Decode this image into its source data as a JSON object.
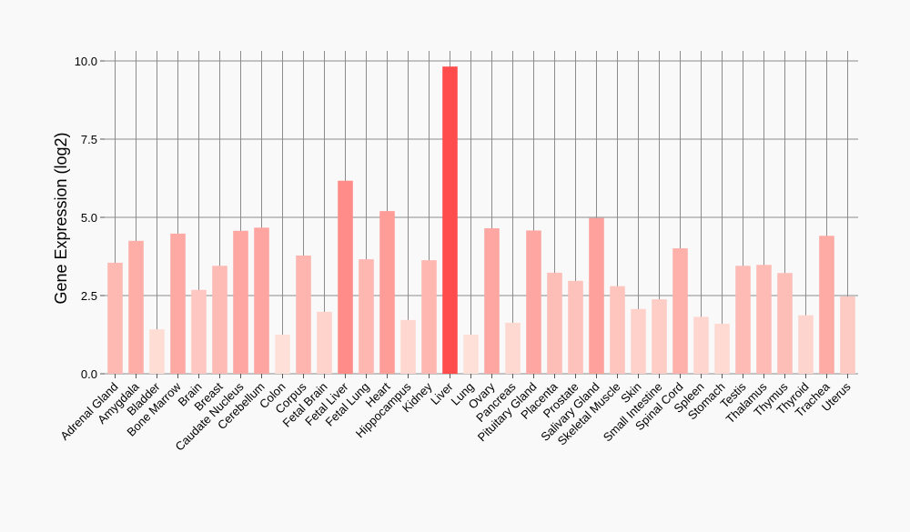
{
  "chart_data": {
    "type": "bar",
    "ylabel": "Gene Expression (log2)",
    "xlabel": "",
    "ylim": [
      0,
      10.3
    ],
    "yticks": [
      0.0,
      2.5,
      5.0,
      7.5,
      10.0
    ],
    "ytick_labels": [
      "0.0",
      "2.5",
      "5.0",
      "7.5",
      "10.0"
    ],
    "grid": "major-x-and-y",
    "bar_colors": {
      "low": "#fee0d8",
      "high": "#ff4d4d"
    },
    "categories": [
      "Adrenal Gland",
      "Amygdala",
      "Bladder",
      "Bone Marrow",
      "Brain",
      "Breast",
      "Caudate Nucleus",
      "Cerebellum",
      "Colon",
      "Corpus",
      "Fetal Brain",
      "Fetal Liver",
      "Fetal Lung",
      "Heart",
      "Hippocampus",
      "Kidney",
      "Liver",
      "Lung",
      "Ovary",
      "Pancreas",
      "Pituitary Gland",
      "Placenta",
      "Prostate",
      "Salivary Gland",
      "Skeletal Muscle",
      "Skin",
      "Small Intestine",
      "Spinal Cord",
      "Spleen",
      "Stomach",
      "Testis",
      "Thalamus",
      "Thymus",
      "Thyroid",
      "Trachea",
      "Uterus"
    ],
    "values": [
      3.55,
      4.25,
      1.42,
      4.48,
      2.68,
      3.45,
      4.57,
      4.67,
      1.25,
      3.78,
      1.98,
      6.17,
      3.66,
      5.2,
      1.72,
      3.63,
      9.82,
      1.25,
      4.65,
      1.63,
      4.58,
      3.23,
      2.97,
      4.98,
      2.8,
      2.07,
      2.38,
      4.01,
      1.82,
      1.6,
      3.45,
      3.48,
      3.22,
      1.87,
      4.41,
      2.47
    ]
  }
}
